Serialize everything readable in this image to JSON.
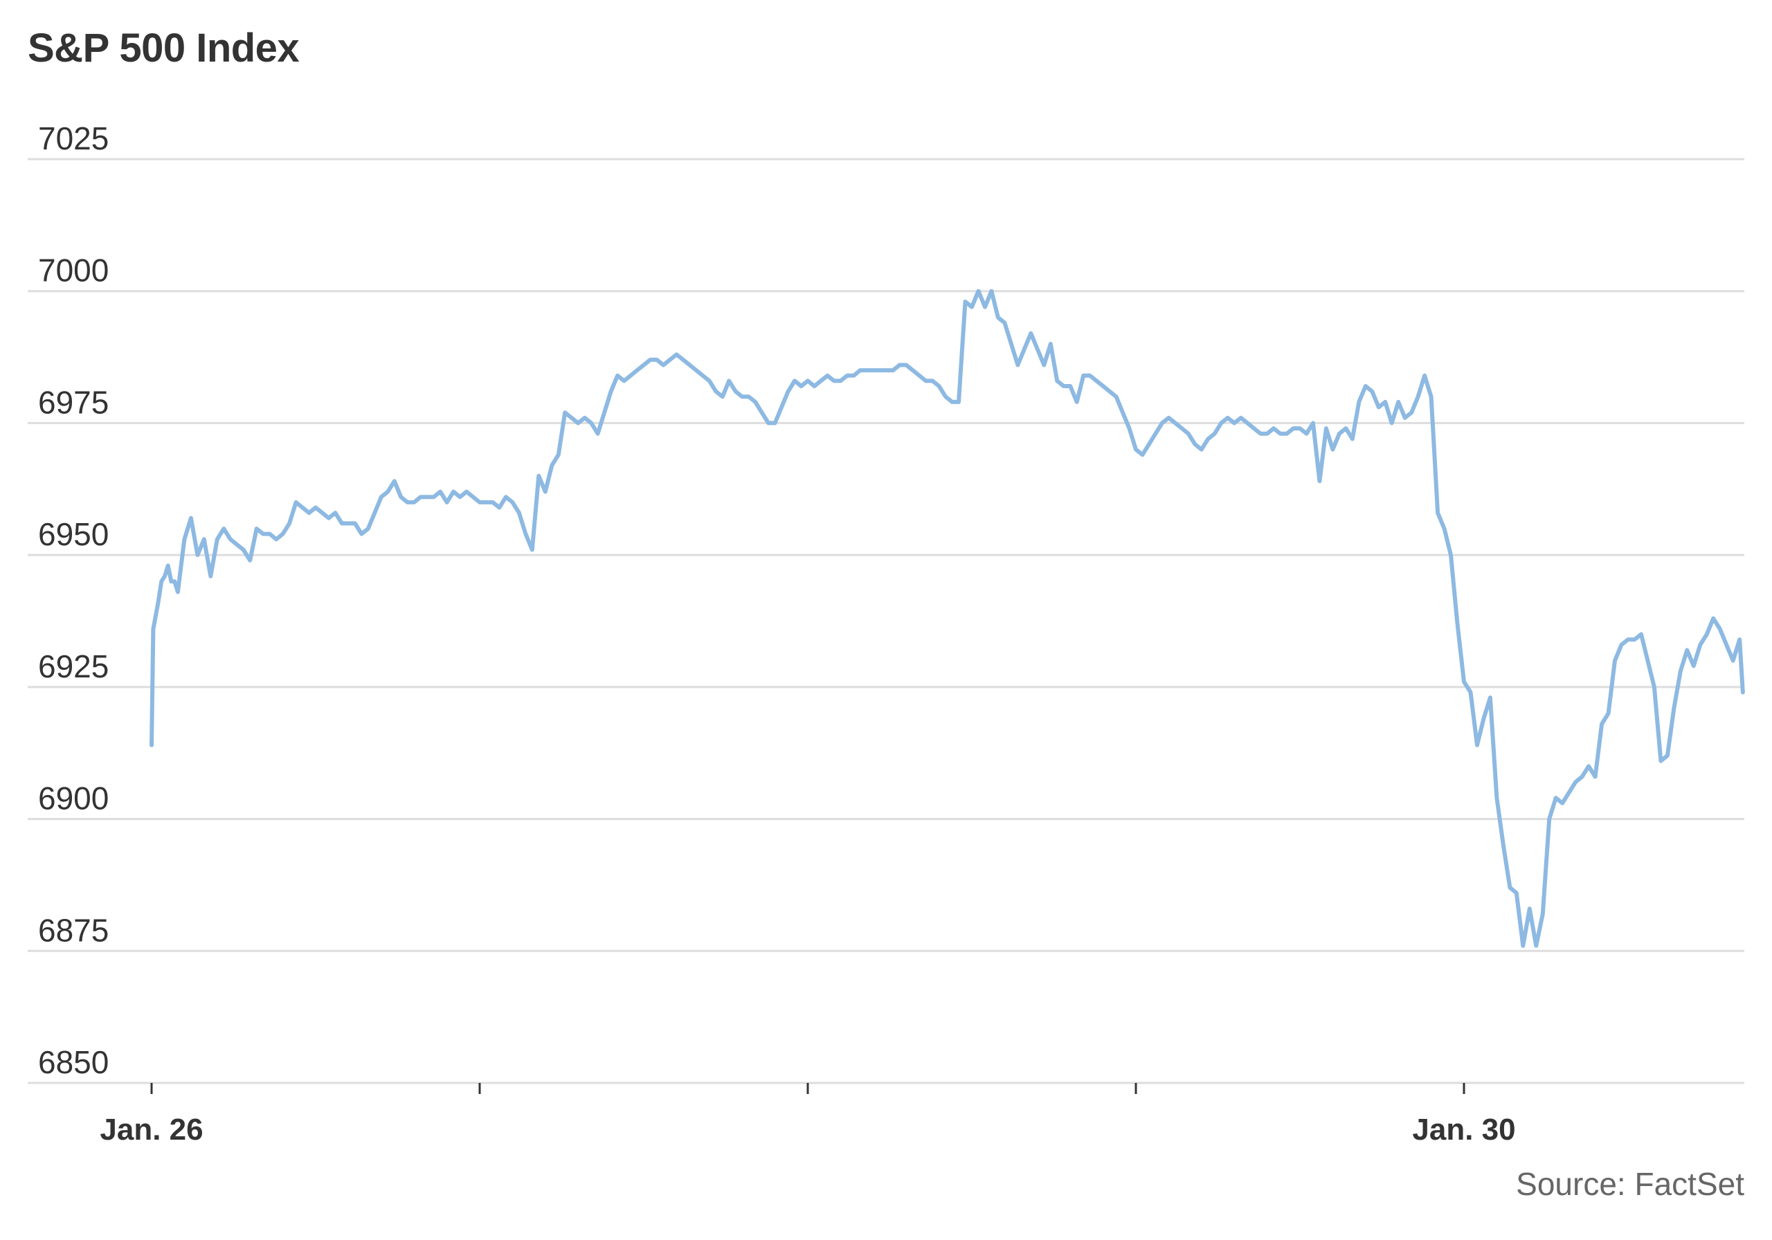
{
  "title": "S&P 500 Index",
  "source": "Source: FactSet",
  "colors": {
    "line": "#8db9e2",
    "grid": "#dddddd",
    "text": "#333333",
    "source": "#666666"
  },
  "chart_data": {
    "type": "line",
    "title": "S&P 500 Index",
    "ylim": [
      6850,
      7025
    ],
    "yticks": [
      7025,
      7000,
      6975,
      6950,
      6925,
      6900,
      6875,
      6850
    ],
    "xlim": [
      0,
      4.85
    ],
    "xticks": [
      {
        "x": 0,
        "label": "Jan. 26"
      },
      {
        "x": 1,
        "label": ""
      },
      {
        "x": 2,
        "label": ""
      },
      {
        "x": 3,
        "label": ""
      },
      {
        "x": 4,
        "label": "Jan. 30"
      }
    ],
    "grid": true,
    "legend": "none",
    "series": [
      {
        "points": [
          [
            0.0,
            6914
          ],
          [
            0.005,
            6936
          ],
          [
            0.02,
            6941
          ],
          [
            0.03,
            6945
          ],
          [
            0.04,
            6946
          ],
          [
            0.05,
            6948
          ],
          [
            0.06,
            6945
          ],
          [
            0.07,
            6945
          ],
          [
            0.08,
            6943
          ],
          [
            0.1,
            6953
          ],
          [
            0.12,
            6957
          ],
          [
            0.14,
            6950
          ],
          [
            0.16,
            6953
          ],
          [
            0.18,
            6946
          ],
          [
            0.2,
            6953
          ],
          [
            0.22,
            6955
          ],
          [
            0.24,
            6953
          ],
          [
            0.26,
            6952
          ],
          [
            0.28,
            6951
          ],
          [
            0.3,
            6949
          ],
          [
            0.32,
            6955
          ],
          [
            0.34,
            6954
          ],
          [
            0.36,
            6954
          ],
          [
            0.38,
            6953
          ],
          [
            0.4,
            6954
          ],
          [
            0.42,
            6956
          ],
          [
            0.44,
            6960
          ],
          [
            0.46,
            6959
          ],
          [
            0.48,
            6958
          ],
          [
            0.5,
            6959
          ],
          [
            0.52,
            6958
          ],
          [
            0.54,
            6957
          ],
          [
            0.56,
            6958
          ],
          [
            0.58,
            6956
          ],
          [
            0.6,
            6956
          ],
          [
            0.62,
            6956
          ],
          [
            0.64,
            6954
          ],
          [
            0.66,
            6955
          ],
          [
            0.68,
            6958
          ],
          [
            0.7,
            6961
          ],
          [
            0.72,
            6962
          ],
          [
            0.74,
            6964
          ],
          [
            0.76,
            6961
          ],
          [
            0.78,
            6960
          ],
          [
            0.8,
            6960
          ],
          [
            0.82,
            6961
          ],
          [
            0.84,
            6961
          ],
          [
            0.86,
            6961
          ],
          [
            0.88,
            6962
          ],
          [
            0.9,
            6960
          ],
          [
            0.92,
            6962
          ],
          [
            0.94,
            6961
          ],
          [
            0.96,
            6962
          ],
          [
            0.98,
            6961
          ],
          [
            1.0,
            6960
          ],
          [
            1.02,
            6960
          ],
          [
            1.04,
            6960
          ],
          [
            1.06,
            6959
          ],
          [
            1.08,
            6961
          ],
          [
            1.1,
            6960
          ],
          [
            1.12,
            6958
          ],
          [
            1.14,
            6954
          ],
          [
            1.16,
            6951
          ],
          [
            1.18,
            6965
          ],
          [
            1.2,
            6962
          ],
          [
            1.22,
            6967
          ],
          [
            1.24,
            6969
          ],
          [
            1.26,
            6977
          ],
          [
            1.28,
            6976
          ],
          [
            1.3,
            6975
          ],
          [
            1.32,
            6976
          ],
          [
            1.34,
            6975
          ],
          [
            1.36,
            6973
          ],
          [
            1.38,
            6977
          ],
          [
            1.4,
            6981
          ],
          [
            1.42,
            6984
          ],
          [
            1.44,
            6983
          ],
          [
            1.46,
            6984
          ],
          [
            1.48,
            6985
          ],
          [
            1.5,
            6986
          ],
          [
            1.52,
            6987
          ],
          [
            1.54,
            6987
          ],
          [
            1.56,
            6986
          ],
          [
            1.58,
            6987
          ],
          [
            1.6,
            6988
          ],
          [
            1.62,
            6987
          ],
          [
            1.64,
            6986
          ],
          [
            1.66,
            6985
          ],
          [
            1.68,
            6984
          ],
          [
            1.7,
            6983
          ],
          [
            1.72,
            6981
          ],
          [
            1.74,
            6980
          ],
          [
            1.76,
            6983
          ],
          [
            1.78,
            6981
          ],
          [
            1.8,
            6980
          ],
          [
            1.82,
            6980
          ],
          [
            1.84,
            6979
          ],
          [
            1.86,
            6977
          ],
          [
            1.88,
            6975
          ],
          [
            1.9,
            6975
          ],
          [
            1.92,
            6978
          ],
          [
            1.94,
            6981
          ],
          [
            1.96,
            6983
          ],
          [
            1.98,
            6982
          ],
          [
            2.0,
            6983
          ],
          [
            2.02,
            6982
          ],
          [
            2.04,
            6983
          ],
          [
            2.06,
            6984
          ],
          [
            2.08,
            6983
          ],
          [
            2.1,
            6983
          ],
          [
            2.12,
            6984
          ],
          [
            2.14,
            6984
          ],
          [
            2.16,
            6985
          ],
          [
            2.18,
            6985
          ],
          [
            2.2,
            6985
          ],
          [
            2.22,
            6985
          ],
          [
            2.24,
            6985
          ],
          [
            2.26,
            6985
          ],
          [
            2.28,
            6986
          ],
          [
            2.3,
            6986
          ],
          [
            2.32,
            6985
          ],
          [
            2.34,
            6984
          ],
          [
            2.36,
            6983
          ],
          [
            2.38,
            6983
          ],
          [
            2.4,
            6982
          ],
          [
            2.42,
            6980
          ],
          [
            2.44,
            6979
          ],
          [
            2.46,
            6979
          ],
          [
            2.48,
            6998
          ],
          [
            2.5,
            6997
          ],
          [
            2.52,
            7000
          ],
          [
            2.54,
            6997
          ],
          [
            2.56,
            7000
          ],
          [
            2.58,
            6995
          ],
          [
            2.6,
            6994
          ],
          [
            2.62,
            6990
          ],
          [
            2.64,
            6986
          ],
          [
            2.66,
            6989
          ],
          [
            2.68,
            6992
          ],
          [
            2.7,
            6989
          ],
          [
            2.72,
            6986
          ],
          [
            2.74,
            6990
          ],
          [
            2.76,
            6983
          ],
          [
            2.78,
            6982
          ],
          [
            2.8,
            6982
          ],
          [
            2.82,
            6979
          ],
          [
            2.84,
            6984
          ],
          [
            2.86,
            6984
          ],
          [
            2.88,
            6983
          ],
          [
            2.9,
            6982
          ],
          [
            2.92,
            6981
          ],
          [
            2.94,
            6980
          ],
          [
            2.96,
            6977
          ],
          [
            2.98,
            6974
          ],
          [
            3.0,
            6970
          ],
          [
            3.02,
            6969
          ],
          [
            3.04,
            6971
          ],
          [
            3.06,
            6973
          ],
          [
            3.08,
            6975
          ],
          [
            3.1,
            6976
          ],
          [
            3.12,
            6975
          ],
          [
            3.14,
            6974
          ],
          [
            3.16,
            6973
          ],
          [
            3.18,
            6971
          ],
          [
            3.2,
            6970
          ],
          [
            3.22,
            6972
          ],
          [
            3.24,
            6973
          ],
          [
            3.26,
            6975
          ],
          [
            3.28,
            6976
          ],
          [
            3.3,
            6975
          ],
          [
            3.32,
            6976
          ],
          [
            3.34,
            6975
          ],
          [
            3.36,
            6974
          ],
          [
            3.38,
            6973
          ],
          [
            3.4,
            6973
          ],
          [
            3.42,
            6974
          ],
          [
            3.44,
            6973
          ],
          [
            3.46,
            6973
          ],
          [
            3.48,
            6974
          ],
          [
            3.5,
            6974
          ],
          [
            3.52,
            6973
          ],
          [
            3.54,
            6975
          ],
          [
            3.56,
            6964
          ],
          [
            3.58,
            6974
          ],
          [
            3.6,
            6970
          ],
          [
            3.62,
            6973
          ],
          [
            3.64,
            6974
          ],
          [
            3.66,
            6972
          ],
          [
            3.68,
            6979
          ],
          [
            3.7,
            6982
          ],
          [
            3.72,
            6981
          ],
          [
            3.74,
            6978
          ],
          [
            3.76,
            6979
          ],
          [
            3.78,
            6975
          ],
          [
            3.8,
            6979
          ],
          [
            3.82,
            6976
          ],
          [
            3.84,
            6977
          ],
          [
            3.86,
            6980
          ],
          [
            3.88,
            6984
          ],
          [
            3.9,
            6980
          ],
          [
            3.92,
            6958
          ],
          [
            3.94,
            6955
          ],
          [
            3.96,
            6950
          ],
          [
            3.98,
            6937
          ],
          [
            4.0,
            6926
          ],
          [
            4.02,
            6924
          ],
          [
            4.04,
            6914
          ],
          [
            4.06,
            6919
          ],
          [
            4.08,
            6923
          ],
          [
            4.1,
            6904
          ],
          [
            4.12,
            6895
          ],
          [
            4.14,
            6887
          ],
          [
            4.16,
            6886
          ],
          [
            4.18,
            6876
          ],
          [
            4.2,
            6883
          ],
          [
            4.22,
            6876
          ],
          [
            4.24,
            6882
          ],
          [
            4.26,
            6900
          ],
          [
            4.28,
            6904
          ],
          [
            4.3,
            6903
          ],
          [
            4.32,
            6905
          ],
          [
            4.34,
            6907
          ],
          [
            4.36,
            6908
          ],
          [
            4.38,
            6910
          ],
          [
            4.4,
            6908
          ],
          [
            4.42,
            6918
          ],
          [
            4.44,
            6920
          ],
          [
            4.46,
            6930
          ],
          [
            4.48,
            6933
          ],
          [
            4.5,
            6934
          ],
          [
            4.52,
            6934
          ],
          [
            4.54,
            6935
          ],
          [
            4.56,
            6930
          ],
          [
            4.58,
            6925
          ],
          [
            4.6,
            6911
          ],
          [
            4.62,
            6912
          ],
          [
            4.64,
            6921
          ],
          [
            4.66,
            6928
          ],
          [
            4.68,
            6932
          ],
          [
            4.7,
            6929
          ],
          [
            4.72,
            6933
          ],
          [
            4.74,
            6935
          ],
          [
            4.76,
            6938
          ],
          [
            4.78,
            6936
          ],
          [
            4.8,
            6933
          ],
          [
            4.82,
            6930
          ],
          [
            4.84,
            6934
          ],
          [
            4.85,
            6924
          ]
        ]
      }
    ]
  }
}
